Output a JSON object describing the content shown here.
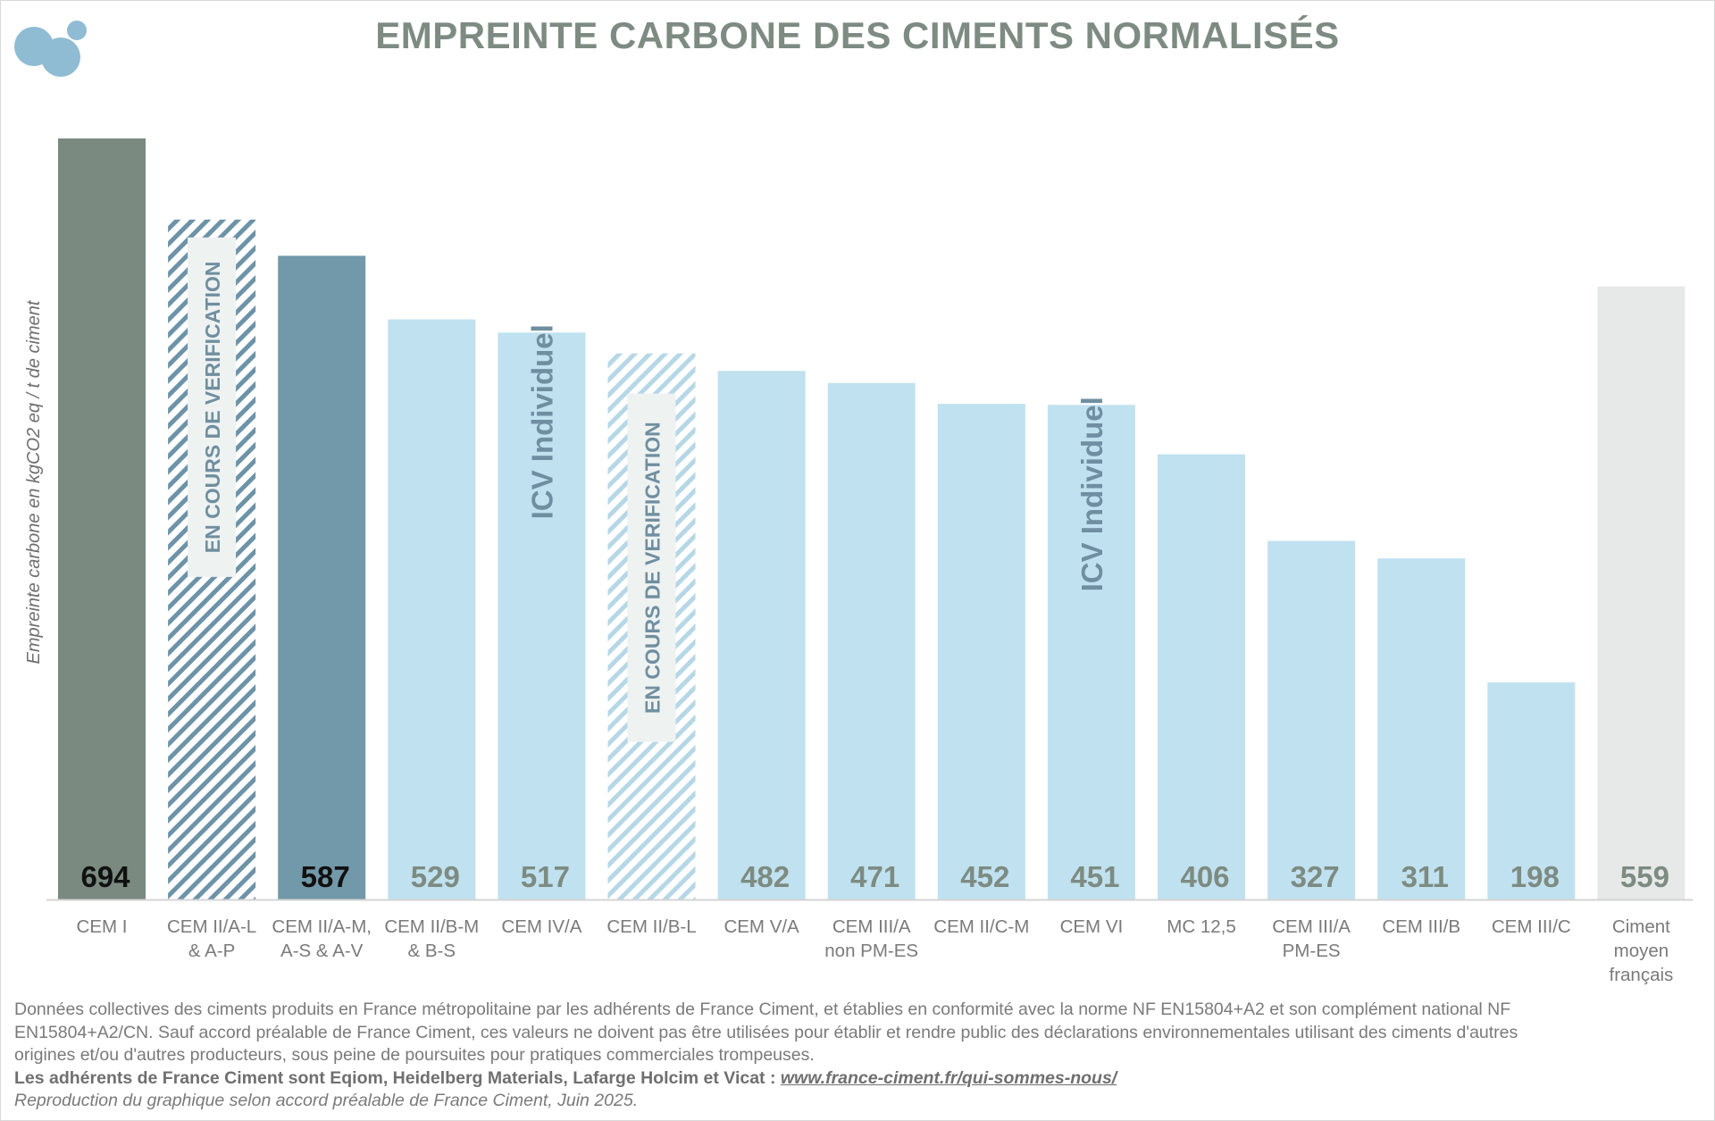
{
  "title": "EMPREINTE CARBONE DES CIMENTS NORMALISÉS",
  "colors": {
    "cem1": "#7a8a80",
    "dark_blue": "#7199a9",
    "light_blue": "#c0e1ef",
    "grey_avg": "#e6e9e7",
    "hatch_dark": "#6d93a8",
    "hatch_light": "#b6d7e6",
    "title": "#7d8b82",
    "value_light": "#7d8b82",
    "value_dark": "#111111"
  },
  "chart_data": {
    "type": "bar",
    "ylabel": "Empreinte carbone en kgCO2 eq / t de ciment",
    "ylim": [
      0,
      694
    ],
    "grid": false,
    "bars": [
      {
        "label": "CEM I",
        "value": 694,
        "value_label": "694",
        "style": "cem1",
        "value_color": "dark",
        "overlay": ""
      },
      {
        "label": "CEM II/A-L\n& A-P",
        "value": 620,
        "value_label": "",
        "style": "hatch_dark",
        "value_color": "none",
        "overlay": "EN COURS DE VERIFICATION"
      },
      {
        "label": "CEM II/A-M,\nA-S & A-V",
        "value": 587,
        "value_label": "587",
        "style": "dark_blue",
        "value_color": "dark",
        "overlay": ""
      },
      {
        "label": "CEM II/B-M\n& B-S",
        "value": 529,
        "value_label": "529",
        "style": "light_blue",
        "value_color": "light",
        "overlay": ""
      },
      {
        "label": "CEM IV/A",
        "value": 517,
        "value_label": "517",
        "style": "light_blue",
        "value_color": "light",
        "overlay": "ICV Individuel"
      },
      {
        "label": "CEM II/B-L",
        "value": 498,
        "value_label": "",
        "style": "hatch_light",
        "value_color": "none",
        "overlay": "EN COURS DE VERIFICATION"
      },
      {
        "label": "CEM V/A",
        "value": 482,
        "value_label": "482",
        "style": "light_blue",
        "value_color": "light",
        "overlay": ""
      },
      {
        "label": "CEM III/A\nnon PM-ES",
        "value": 471,
        "value_label": "471",
        "style": "light_blue",
        "value_color": "light",
        "overlay": ""
      },
      {
        "label": "CEM II/C-M",
        "value": 452,
        "value_label": "452",
        "style": "light_blue",
        "value_color": "light",
        "overlay": ""
      },
      {
        "label": "CEM VI",
        "value": 451,
        "value_label": "451",
        "style": "light_blue",
        "value_color": "light",
        "overlay": "ICV Individuel"
      },
      {
        "label": "MC 12,5",
        "value": 406,
        "value_label": "406",
        "style": "light_blue",
        "value_color": "light",
        "overlay": ""
      },
      {
        "label": "CEM III/A\nPM-ES",
        "value": 327,
        "value_label": "327",
        "style": "light_blue",
        "value_color": "light",
        "overlay": ""
      },
      {
        "label": "CEM III/B",
        "value": 311,
        "value_label": "311",
        "style": "light_blue",
        "value_color": "light",
        "overlay": ""
      },
      {
        "label": "CEM III/C",
        "value": 198,
        "value_label": "198",
        "style": "light_blue",
        "value_color": "light",
        "overlay": ""
      },
      {
        "label": "Ciment\nmoyen\nfrançais",
        "value": 559,
        "value_label": "559",
        "style": "grey_avg",
        "value_color": "light",
        "overlay": ""
      }
    ]
  },
  "footer": {
    "note": "Données collectives des ciments produits en France métropolitaine par les adhérents de France Ciment, et établies en conformité avec la norme NF EN15804+A2 et son complément national NF EN15804+A2/CN. Sauf accord préalable de France Ciment, ces valeurs ne doivent pas être utilisées pour établir et rendre public des déclarations environnementales utilisant des ciments d'autres origines et/ou d'autres producteurs, sous peine de poursuites pour pratiques commerciales trompeuses.",
    "members": "Les adhérents de France Ciment sont Eqiom, Heidelberg Materials, Lafarge Holcim et Vicat : ",
    "link": "www.france-ciment.fr/qui-sommes-nous/",
    "reproduction": "Reproduction du graphique selon accord préalable de France Ciment, Juin 2025."
  }
}
